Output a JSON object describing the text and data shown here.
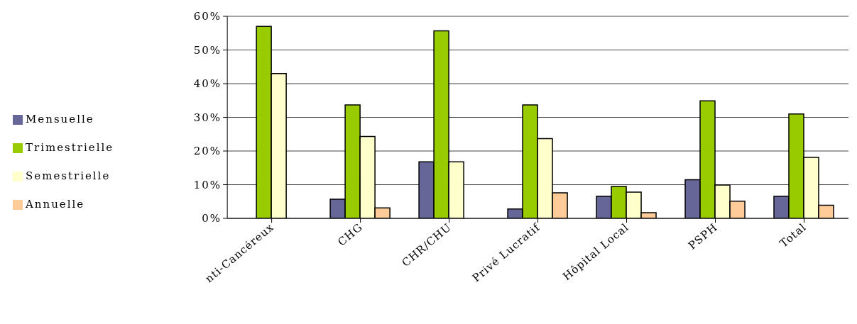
{
  "chart_data": {
    "type": "bar",
    "categories": [
      "nti-Cancéreux",
      "CHG",
      "CHR/CHU",
      "Privé Lucratif",
      "Hôpital Local",
      "PSPH",
      "Total"
    ],
    "series": [
      {
        "name": "Mensuelle",
        "color": "#666699",
        "values": [
          null,
          5.7,
          16.8,
          2.8,
          6.6,
          11.5,
          6.6
        ]
      },
      {
        "name": "Trimestrielle",
        "color": "#99cc00",
        "values": [
          57,
          33.7,
          55.7,
          33.7,
          9.5,
          34.9,
          31
        ]
      },
      {
        "name": "Semestrielle",
        "color": "#ffffcc",
        "values": [
          43,
          24.3,
          16.8,
          23.7,
          7.8,
          9.9,
          18.1
        ]
      },
      {
        "name": "Annuelle",
        "color": "#ffcc99",
        "values": [
          null,
          3.1,
          null,
          7.6,
          1.7,
          5.1,
          3.9
        ]
      }
    ],
    "ylim": [
      0,
      60
    ],
    "yticks": [
      {
        "value": 0,
        "label": "0%"
      },
      {
        "value": 10,
        "label": "10%"
      },
      {
        "value": 20,
        "label": "20%"
      },
      {
        "value": 30,
        "label": "30%"
      },
      {
        "value": 40,
        "label": "40%"
      },
      {
        "value": 50,
        "label": "50%"
      },
      {
        "value": 60,
        "label": "60%"
      }
    ],
    "grid": "y",
    "legend": "left"
  }
}
